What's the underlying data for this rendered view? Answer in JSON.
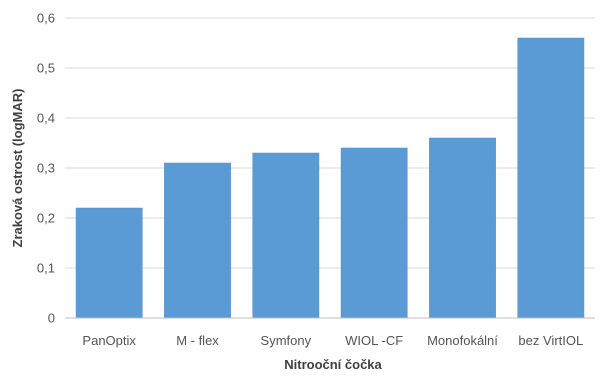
{
  "chart_data": {
    "type": "bar",
    "categories": [
      "PanOptix",
      "M - flex",
      "Symfony",
      "WIOL -CF",
      "Monofokální",
      "bez VirtIOL"
    ],
    "values": [
      0.22,
      0.31,
      0.33,
      0.34,
      0.36,
      0.56
    ],
    "title": "",
    "xlabel": "Nitrooční čočka",
    "ylabel": "Zraková ostrost (logMAR)",
    "ylim": [
      0,
      0.6
    ],
    "yticks": [
      "0",
      "0,1",
      "0,2",
      "0,3",
      "0,4",
      "0,5",
      "0,6"
    ],
    "grid": true,
    "legend": "none",
    "colors": {
      "bar": "#5a9bd5",
      "bar_edge": "#4f8fca",
      "grid": "#d9d9d9",
      "axis": "#bfbfbf"
    }
  }
}
